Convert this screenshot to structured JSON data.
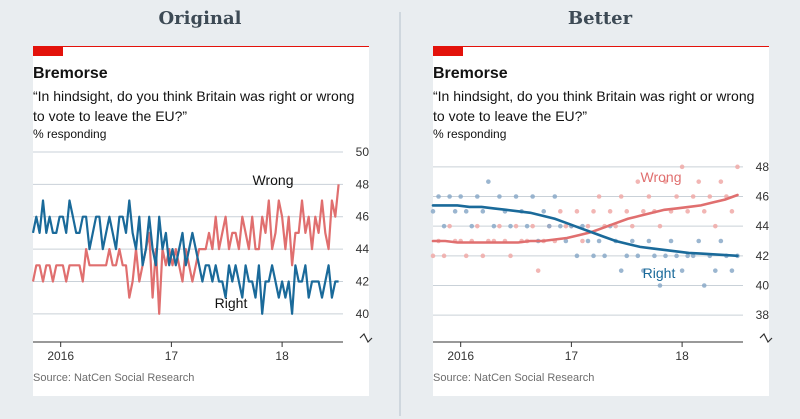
{
  "headings": {
    "left": "Original",
    "right": "Better"
  },
  "panels": [
    {
      "title": "Bremorse",
      "subtitle": "“In hindsight, do you think Britain was right or wrong to vote to leave the EU?”",
      "unit": "% responding",
      "source": "Source: NatCen Social Research"
    },
    {
      "title": "Bremorse",
      "subtitle": "“In hindsight, do you think Britain was right or wrong to vote to leave the EU?”",
      "unit": "% responding",
      "source": "Source: NatCen Social Research"
    }
  ],
  "colors": {
    "wrong": "#e06f6f",
    "right": "#1a6a9a",
    "wrong_dot": "#f0a9a7",
    "right_dot": "#8aa9c8",
    "grid": "#c9d1d8",
    "accent": "#e3120b"
  },
  "chart_data": [
    {
      "type": "line",
      "x_ticks": [
        "2016",
        "17",
        "18"
      ],
      "x_tick_positions": [
        2016.0,
        2017.0,
        2018.0
      ],
      "xlim": [
        2015.75,
        2018.55
      ],
      "ylim": [
        39,
        50
      ],
      "y_ticks": [
        40,
        42,
        44,
        46,
        48,
        50
      ],
      "y_axis_broken": true,
      "series": [
        {
          "name": "Wrong",
          "color": "#e06f6f",
          "x": [
            2015.75,
            2015.78,
            2015.81,
            2015.84,
            2015.87,
            2015.9,
            2015.93,
            2015.96,
            2015.99,
            2016.02,
            2016.05,
            2016.08,
            2016.11,
            2016.14,
            2016.17,
            2016.2,
            2016.23,
            2016.26,
            2016.29,
            2016.32,
            2016.35,
            2016.38,
            2016.41,
            2016.44,
            2016.47,
            2016.5,
            2016.53,
            2016.56,
            2016.59,
            2016.62,
            2016.65,
            2016.68,
            2016.71,
            2016.74,
            2016.77,
            2016.8,
            2016.83,
            2016.86,
            2016.89,
            2016.92,
            2016.95,
            2016.98,
            2017.01,
            2017.04,
            2017.07,
            2017.1,
            2017.13,
            2017.16,
            2017.19,
            2017.22,
            2017.25,
            2017.28,
            2017.31,
            2017.34,
            2017.37,
            2017.4,
            2017.43,
            2017.46,
            2017.49,
            2017.52,
            2017.55,
            2017.58,
            2017.61,
            2017.64,
            2017.67,
            2017.7,
            2017.73,
            2017.76,
            2017.79,
            2017.82,
            2017.85,
            2017.88,
            2017.91,
            2017.94,
            2017.97,
            2018.0,
            2018.03,
            2018.06,
            2018.09,
            2018.12,
            2018.15,
            2018.18,
            2018.21,
            2018.24,
            2018.27,
            2018.3,
            2018.33,
            2018.36,
            2018.39,
            2018.42,
            2018.45,
            2018.48,
            2018.51
          ],
          "values": [
            42,
            43,
            43,
            42,
            43,
            43,
            42,
            43,
            43,
            43,
            42,
            43,
            43,
            43,
            43,
            42,
            44,
            43,
            43,
            43,
            43,
            43,
            43,
            44,
            43,
            43,
            44,
            43,
            43,
            41,
            42,
            44,
            42,
            43,
            44,
            45,
            41,
            44,
            40,
            44,
            43,
            44,
            43,
            44,
            43,
            42,
            44,
            43,
            42,
            43,
            44,
            44,
            44,
            45,
            44,
            46,
            44,
            45,
            46,
            44,
            45,
            45,
            44,
            46,
            45,
            44,
            46,
            44,
            44,
            46,
            45,
            47,
            44,
            45,
            47,
            46,
            44,
            46,
            43,
            45,
            45,
            47,
            45,
            46,
            44,
            46,
            45,
            47,
            45,
            44,
            47,
            46,
            48
          ]
        },
        {
          "name": "Right",
          "color": "#1a6a9a",
          "x": [
            2015.75,
            2015.78,
            2015.81,
            2015.84,
            2015.87,
            2015.9,
            2015.93,
            2015.96,
            2015.99,
            2016.02,
            2016.05,
            2016.08,
            2016.11,
            2016.14,
            2016.17,
            2016.2,
            2016.23,
            2016.26,
            2016.29,
            2016.32,
            2016.35,
            2016.38,
            2016.41,
            2016.44,
            2016.47,
            2016.5,
            2016.53,
            2016.56,
            2016.59,
            2016.62,
            2016.65,
            2016.68,
            2016.71,
            2016.74,
            2016.77,
            2016.8,
            2016.83,
            2016.86,
            2016.89,
            2016.92,
            2016.95,
            2016.98,
            2017.01,
            2017.04,
            2017.07,
            2017.1,
            2017.13,
            2017.16,
            2017.19,
            2017.22,
            2017.25,
            2017.28,
            2017.31,
            2017.34,
            2017.37,
            2017.4,
            2017.43,
            2017.46,
            2017.49,
            2017.52,
            2017.55,
            2017.58,
            2017.61,
            2017.64,
            2017.67,
            2017.7,
            2017.73,
            2017.76,
            2017.79,
            2017.82,
            2017.85,
            2017.88,
            2017.91,
            2017.94,
            2017.97,
            2018.0,
            2018.03,
            2018.06,
            2018.09,
            2018.12,
            2018.15,
            2018.18,
            2018.21,
            2018.24,
            2018.27,
            2018.3,
            2018.33,
            2018.36,
            2018.39,
            2018.42,
            2018.45,
            2018.48,
            2018.51
          ],
          "values": [
            45,
            46,
            45,
            47,
            45,
            46,
            45,
            45,
            46,
            46,
            45,
            47,
            46,
            45,
            45,
            46,
            46,
            44,
            45,
            46,
            46,
            44,
            45,
            46,
            45,
            44,
            46,
            46,
            45,
            47,
            45,
            44,
            46,
            43,
            44,
            46,
            44,
            43,
            46,
            44,
            45,
            43,
            44,
            43,
            44,
            45,
            43,
            44,
            45,
            44,
            43,
            42,
            43,
            43,
            42,
            43,
            42,
            42,
            41,
            43,
            42,
            43,
            42,
            41,
            43,
            42,
            42,
            41,
            43,
            40,
            42,
            42,
            43,
            42,
            41,
            42,
            41,
            42,
            40,
            43,
            42,
            42,
            43,
            41,
            42,
            42,
            42,
            41,
            42,
            43,
            41,
            42,
            42
          ]
        }
      ],
      "labels": [
        {
          "series": "Wrong",
          "text": "Wrong"
        },
        {
          "series": "Right",
          "text": "Right"
        }
      ]
    },
    {
      "type": "scatter",
      "x_ticks": [
        "2016",
        "17",
        "18"
      ],
      "x_tick_positions": [
        2016.0,
        2017.0,
        2018.0
      ],
      "xlim": [
        2015.75,
        2018.55
      ],
      "ylim": [
        37,
        49
      ],
      "y_ticks": [
        38,
        40,
        42,
        44,
        46,
        48
      ],
      "y_axis_broken": true,
      "series": [
        {
          "name": "Wrong",
          "color": "#e06f6f",
          "dot_color": "#f0a9a7",
          "x": [
            2015.75,
            2015.8,
            2015.85,
            2015.9,
            2015.95,
            2016.0,
            2016.05,
            2016.1,
            2016.15,
            2016.2,
            2016.25,
            2016.3,
            2016.35,
            2016.4,
            2016.45,
            2016.5,
            2016.55,
            2016.6,
            2016.65,
            2016.7,
            2016.75,
            2016.8,
            2016.85,
            2016.9,
            2016.95,
            2017.0,
            2017.05,
            2017.1,
            2017.15,
            2017.2,
            2017.25,
            2017.3,
            2017.35,
            2017.4,
            2017.45,
            2017.5,
            2017.55,
            2017.6,
            2017.65,
            2017.7,
            2017.75,
            2017.8,
            2017.85,
            2017.9,
            2017.95,
            2018.0,
            2018.05,
            2018.1,
            2018.15,
            2018.2,
            2018.25,
            2018.3,
            2018.35,
            2018.4,
            2018.45,
            2018.5
          ],
          "values": [
            42,
            43,
            42,
            44,
            43,
            43,
            42,
            43,
            44,
            42,
            43,
            43,
            44,
            43,
            42,
            44,
            43,
            43,
            44,
            41,
            43,
            44,
            43,
            45,
            44,
            44,
            45,
            43,
            44,
            45,
            46,
            44,
            45,
            44,
            46,
            45,
            44,
            47,
            45,
            46,
            45,
            44,
            47,
            45,
            46,
            48,
            45,
            46,
            47,
            45,
            46,
            44,
            47,
            46,
            45,
            48
          ],
          "trend": [
            43.0,
            43.0,
            42.9,
            42.9,
            42.9,
            42.9,
            42.9,
            42.9,
            43.0,
            43.0,
            43.1,
            43.2,
            43.4,
            43.6,
            43.9,
            44.2,
            44.5,
            44.7,
            44.9,
            45.1,
            45.2,
            45.3,
            45.4,
            45.6,
            45.8,
            46.1
          ]
        },
        {
          "name": "Right",
          "color": "#1a6a9a",
          "dot_color": "#8aa9c8",
          "x": [
            2015.75,
            2015.8,
            2015.85,
            2015.9,
            2015.95,
            2016.0,
            2016.05,
            2016.1,
            2016.15,
            2016.2,
            2016.25,
            2016.3,
            2016.35,
            2016.4,
            2016.45,
            2016.5,
            2016.55,
            2016.6,
            2016.65,
            2016.7,
            2016.75,
            2016.8,
            2016.85,
            2016.9,
            2016.95,
            2017.0,
            2017.05,
            2017.1,
            2017.15,
            2017.2,
            2017.25,
            2017.3,
            2017.35,
            2017.4,
            2017.45,
            2017.5,
            2017.55,
            2017.6,
            2017.65,
            2017.7,
            2017.75,
            2017.8,
            2017.85,
            2017.9,
            2017.95,
            2018.0,
            2018.05,
            2018.1,
            2018.15,
            2018.2,
            2018.25,
            2018.3,
            2018.35,
            2018.4,
            2018.45,
            2018.5
          ],
          "values": [
            45,
            46,
            44,
            46,
            45,
            46,
            45,
            44,
            46,
            45,
            47,
            44,
            46,
            45,
            44,
            46,
            45,
            44,
            46,
            43,
            45,
            44,
            46,
            44,
            43,
            44,
            42,
            44,
            43,
            42,
            43,
            42,
            44,
            43,
            41,
            42,
            43,
            42,
            41,
            43,
            42,
            40,
            42,
            43,
            42,
            41,
            42,
            42,
            43,
            40,
            42,
            41,
            43,
            42,
            41,
            42
          ],
          "trend": [
            45.4,
            45.4,
            45.4,
            45.3,
            45.3,
            45.2,
            45.1,
            45.0,
            44.9,
            44.7,
            44.5,
            44.2,
            43.9,
            43.6,
            43.3,
            43.0,
            42.8,
            42.6,
            42.5,
            42.4,
            42.3,
            42.2,
            42.15,
            42.1,
            42.05,
            42.0
          ]
        }
      ],
      "labels": [
        {
          "series": "Wrong",
          "text": "Wrong"
        },
        {
          "series": "Right",
          "text": "Right"
        }
      ]
    }
  ]
}
